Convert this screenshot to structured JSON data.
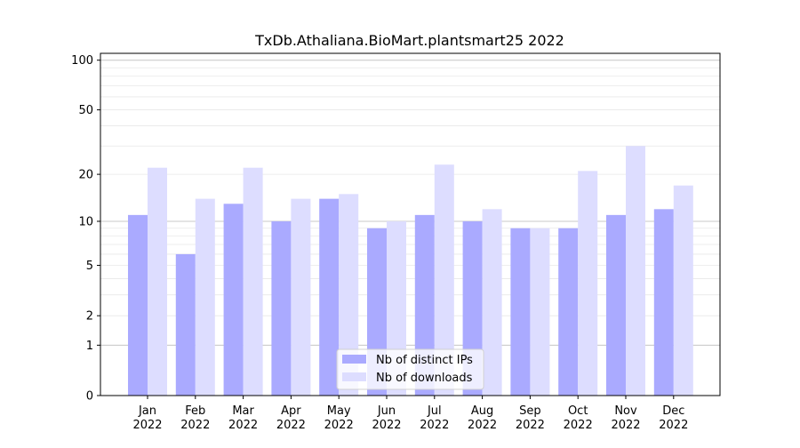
{
  "chart_data": {
    "type": "bar",
    "title": "TxDb.Athaliana.BioMart.plantsmart25 2022",
    "xlabel": "",
    "ylabel": "",
    "y_scale": "log1p",
    "ylim": [
      0,
      110
    ],
    "y_ticks": [
      0,
      1,
      2,
      5,
      10,
      20,
      50,
      100
    ],
    "y_tick_labels": [
      "0",
      "1",
      "2",
      "5",
      "10",
      "20",
      "50",
      "100"
    ],
    "grid": "horizontal",
    "legend_position": "bottom-center",
    "categories": [
      "Jan\n2022",
      "Feb\n2022",
      "Mar\n2022",
      "Apr\n2022",
      "May\n2022",
      "Jun\n2022",
      "Jul\n2022",
      "Aug\n2022",
      "Sep\n2022",
      "Oct\n2022",
      "Nov\n2022",
      "Dec\n2022"
    ],
    "series": [
      {
        "name": "Nb of distinct IPs",
        "color": "#aaaaff",
        "values": [
          11,
          6,
          13,
          10,
          14,
          9,
          11,
          10,
          9,
          9,
          11,
          12
        ]
      },
      {
        "name": "Nb of downloads",
        "color": "#ddddff",
        "values": [
          22,
          14,
          22,
          14,
          15,
          10,
          23,
          12,
          9,
          21,
          30,
          17
        ]
      }
    ]
  }
}
